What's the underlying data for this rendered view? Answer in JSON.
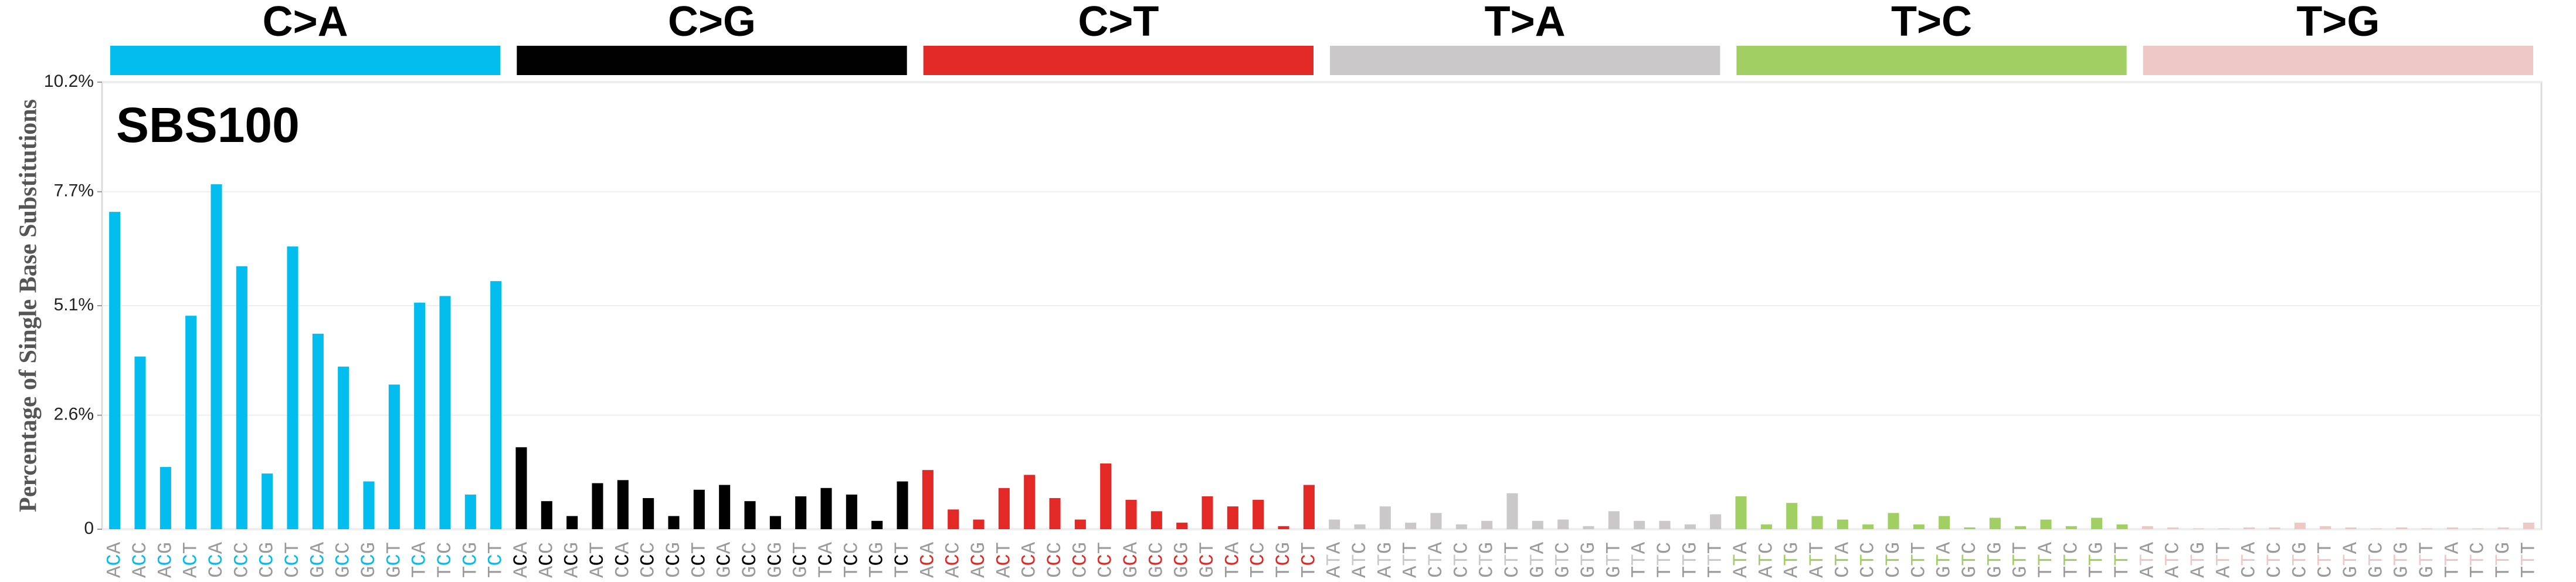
{
  "chart_data": {
    "type": "bar",
    "title": "SBS100",
    "ylabel": "Percentage of Single Base Substitutions",
    "ylim": [
      0,
      10.2
    ],
    "yticks": [
      0,
      {
        "value": 2.6,
        "label": "2.6%"
      },
      {
        "value": 5.1,
        "label": "5.1%"
      },
      {
        "value": 7.7,
        "label": "7.7%"
      },
      {
        "value": 10.2,
        "label": "10.2%"
      }
    ],
    "grid": true,
    "series": [
      {
        "name": "C>A",
        "color": "#03bdee",
        "categories": [
          "ACA",
          "ACC",
          "ACG",
          "ACT",
          "CCA",
          "CCC",
          "CCG",
          "CCT",
          "GCA",
          "GCC",
          "GCG",
          "GCT",
          "TCA",
          "TCC",
          "TCG",
          "TCT"
        ],
        "values": [
          7.24,
          3.94,
          1.42,
          4.87,
          7.87,
          6.0,
          1.27,
          6.45,
          4.46,
          3.71,
          1.09,
          3.3,
          5.17,
          5.32,
          0.79,
          5.66
        ]
      },
      {
        "name": "C>G",
        "color": "#010101",
        "categories": [
          "ACA",
          "ACC",
          "ACG",
          "ACT",
          "CCA",
          "CCC",
          "CCG",
          "CCT",
          "GCA",
          "GCC",
          "GCG",
          "GCT",
          "TCA",
          "TCC",
          "TCG",
          "TCT"
        ],
        "values": [
          1.87,
          0.64,
          0.3,
          1.05,
          1.12,
          0.71,
          0.3,
          0.9,
          1.01,
          0.64,
          0.3,
          0.75,
          0.94,
          0.79,
          0.19,
          1.09
        ]
      },
      {
        "name": "C>T",
        "color": "#e32926",
        "categories": [
          "ACA",
          "ACC",
          "ACG",
          "ACT",
          "CCA",
          "CCC",
          "CCG",
          "CCT",
          "GCA",
          "GCC",
          "GCG",
          "GCT",
          "TCA",
          "TCC",
          "TCG",
          "TCT"
        ],
        "values": [
          1.35,
          0.45,
          0.22,
          0.94,
          1.24,
          0.71,
          0.22,
          1.5,
          0.67,
          0.41,
          0.15,
          0.75,
          0.52,
          0.67,
          0.07,
          1.01
        ]
      },
      {
        "name": "T>A",
        "color": "#cac8c9",
        "categories": [
          "ATA",
          "ATC",
          "ATG",
          "ATT",
          "CTA",
          "CTC",
          "CTG",
          "CTT",
          "GTA",
          "GTC",
          "GTG",
          "GTT",
          "TTA",
          "TTC",
          "TTG",
          "TTT"
        ],
        "values": [
          0.22,
          0.11,
          0.52,
          0.15,
          0.37,
          0.11,
          0.19,
          0.82,
          0.19,
          0.22,
          0.07,
          0.41,
          0.19,
          0.19,
          0.11,
          0.34
        ]
      },
      {
        "name": "T>C",
        "color": "#a1cf64",
        "categories": [
          "ATA",
          "ATC",
          "ATG",
          "ATT",
          "CTA",
          "CTC",
          "CTG",
          "CTT",
          "GTA",
          "GTC",
          "GTG",
          "GTT",
          "TTA",
          "TTC",
          "TTG",
          "TTT"
        ],
        "values": [
          0.75,
          0.11,
          0.6,
          0.3,
          0.22,
          0.11,
          0.37,
          0.11,
          0.3,
          0.04,
          0.26,
          0.07,
          0.22,
          0.07,
          0.26,
          0.11
        ]
      },
      {
        "name": "T>G",
        "color": "#edc8c5",
        "categories": [
          "ATA",
          "ATC",
          "ATG",
          "ATT",
          "CTA",
          "CTC",
          "CTG",
          "CTT",
          "GTA",
          "GTC",
          "GTG",
          "GTT",
          "TTA",
          "TTC",
          "TTG",
          "TTT"
        ],
        "values": [
          0.07,
          0.04,
          0.02,
          0.02,
          0.04,
          0.04,
          0.15,
          0.07,
          0.04,
          0.02,
          0.04,
          0.02,
          0.04,
          0.02,
          0.04,
          0.15
        ]
      }
    ]
  }
}
